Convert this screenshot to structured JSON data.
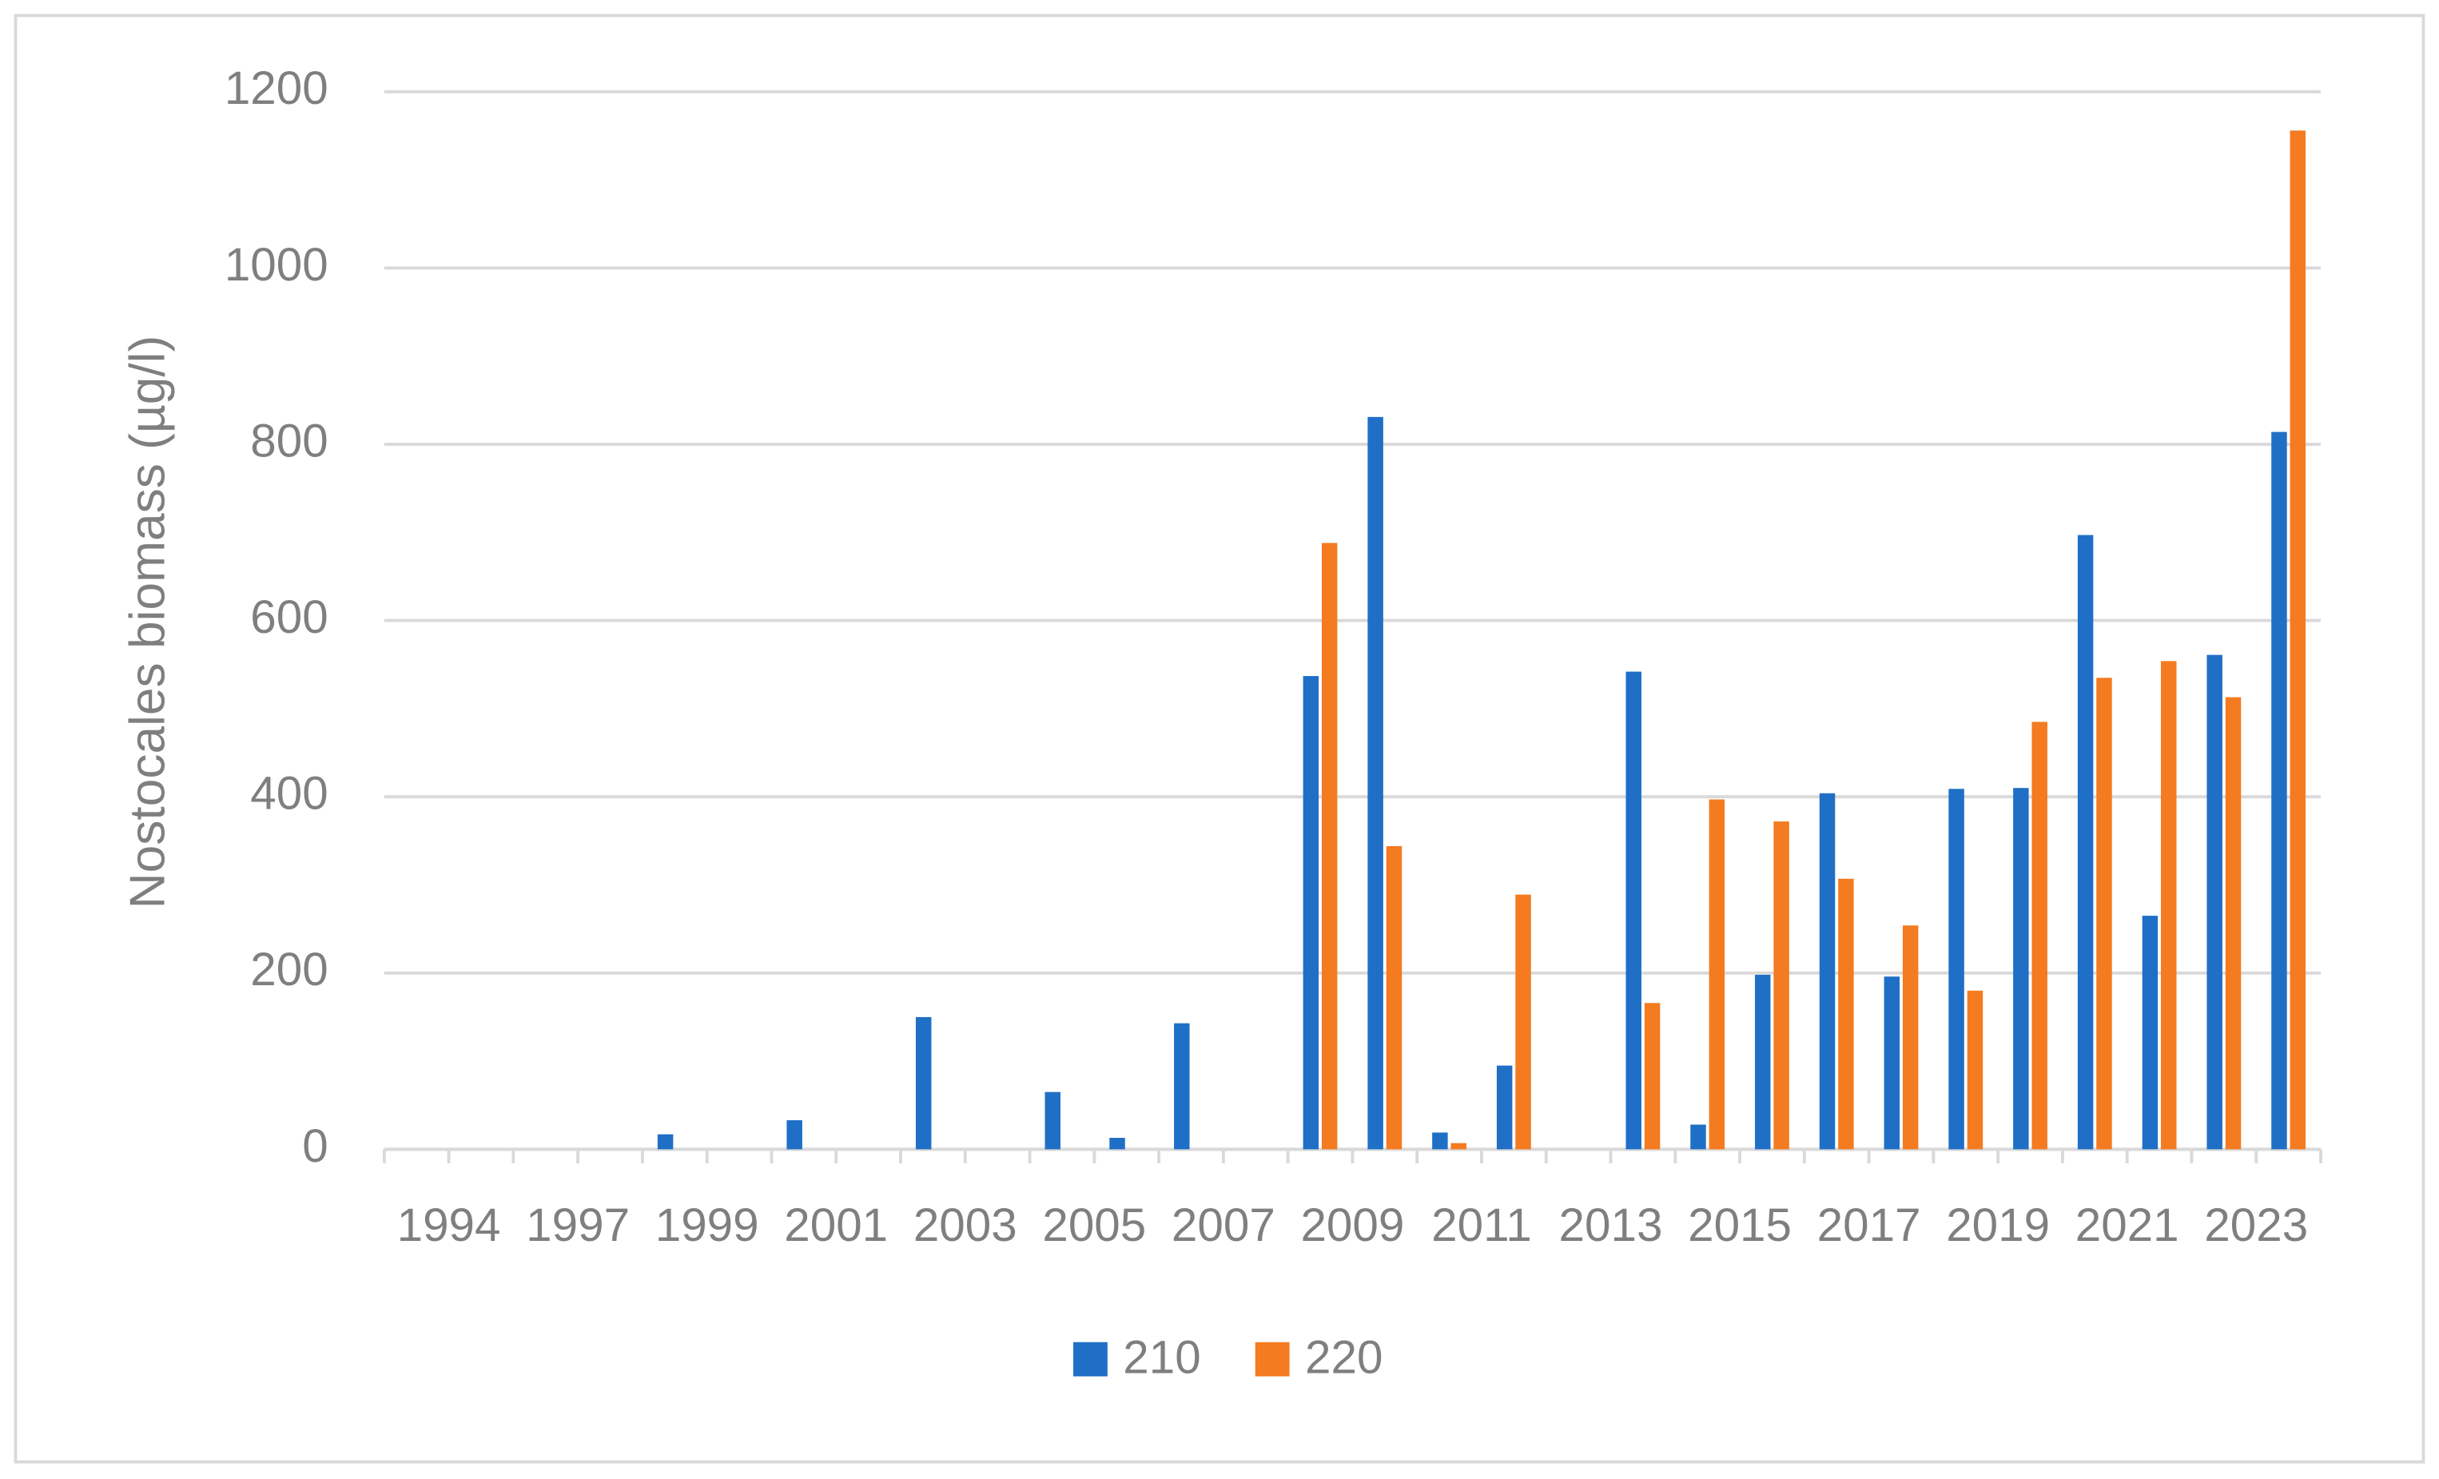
{
  "chart_data": {
    "type": "bar",
    "y_label": "Nostocales biomass (µg/l)",
    "categories": [
      "1994",
      null,
      "1997",
      null,
      "1999",
      null,
      "2001",
      null,
      "2003",
      null,
      "2005",
      null,
      "2007",
      null,
      "2009",
      null,
      "2011",
      null,
      "2013",
      null,
      "2015",
      null,
      "2017",
      null,
      "2019",
      null,
      "2021",
      null,
      "2023",
      null
    ],
    "series": [
      {
        "name": "210",
        "color": "#1f6fc6",
        "values": [
          null,
          null,
          null,
          null,
          17,
          null,
          33,
          null,
          150,
          null,
          65,
          13,
          143,
          null,
          537,
          831,
          19,
          95,
          null,
          542,
          28,
          198,
          404,
          196,
          409,
          410,
          697,
          265,
          561,
          814
        ]
      },
      {
        "name": "220",
        "color": "#f47b20",
        "values": [
          null,
          null,
          null,
          null,
          null,
          null,
          null,
          null,
          null,
          null,
          null,
          null,
          null,
          null,
          688,
          344,
          7,
          289,
          null,
          166,
          397,
          372,
          307,
          254,
          180,
          485,
          535,
          554,
          513,
          1156
        ]
      }
    ],
    "ylim": [
      0,
      1200
    ],
    "yticks": [
      0,
      200,
      400,
      600,
      800,
      1000,
      1200
    ],
    "grid": true,
    "legend": "bottom"
  }
}
